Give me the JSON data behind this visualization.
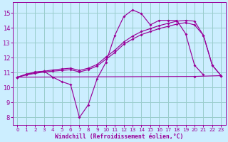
{
  "background_color": "#cceeff",
  "grid_color": "#99cccc",
  "line_color": "#990099",
  "xlabel": "Windchill (Refroidissement éolien,°C)",
  "xlim": [
    -0.5,
    23.5
  ],
  "ylim": [
    7.5,
    15.7
  ],
  "yticks": [
    8,
    9,
    10,
    11,
    12,
    13,
    14,
    15
  ],
  "xticks": [
    0,
    1,
    2,
    3,
    4,
    5,
    6,
    7,
    8,
    9,
    10,
    11,
    12,
    13,
    14,
    15,
    16,
    17,
    18,
    19,
    20,
    21,
    22,
    23
  ],
  "curve1_x": [
    0,
    1,
    2,
    3,
    4,
    5,
    6,
    7,
    8,
    9,
    10,
    11,
    12,
    13,
    14,
    15,
    16,
    17,
    18,
    19,
    20,
    21
  ],
  "curve1_y": [
    10.7,
    10.9,
    11.05,
    11.1,
    10.7,
    10.4,
    10.2,
    8.0,
    8.85,
    10.6,
    11.7,
    13.5,
    14.75,
    15.2,
    14.95,
    14.2,
    14.5,
    14.5,
    14.5,
    13.6,
    11.5,
    10.85
  ],
  "curve2_x": [
    0,
    1,
    2,
    3,
    4,
    5,
    6,
    7,
    8,
    9,
    10,
    11,
    12,
    13,
    14,
    15,
    16,
    17,
    18,
    19,
    20,
    21,
    22,
    23
  ],
  "curve2_y": [
    10.7,
    10.85,
    10.95,
    11.05,
    11.1,
    11.15,
    11.2,
    11.05,
    11.2,
    11.45,
    11.9,
    12.35,
    12.9,
    13.25,
    13.55,
    13.75,
    13.95,
    14.1,
    14.25,
    14.35,
    14.2,
    13.5,
    11.5,
    10.8
  ],
  "curve3_x": [
    0,
    1,
    2,
    3,
    4,
    5,
    6,
    7,
    8,
    9,
    10,
    11,
    12,
    13,
    14,
    15,
    16,
    17,
    18,
    19,
    20,
    21,
    22,
    23
  ],
  "curve3_y": [
    10.7,
    10.88,
    11.0,
    11.1,
    11.18,
    11.25,
    11.3,
    11.15,
    11.3,
    11.55,
    12.05,
    12.5,
    13.05,
    13.45,
    13.75,
    13.95,
    14.15,
    14.3,
    14.45,
    14.5,
    14.45,
    13.5,
    11.5,
    10.8
  ],
  "curve4_x": [
    0,
    20,
    23
  ],
  "curve4_y": [
    10.7,
    10.75,
    10.8
  ]
}
